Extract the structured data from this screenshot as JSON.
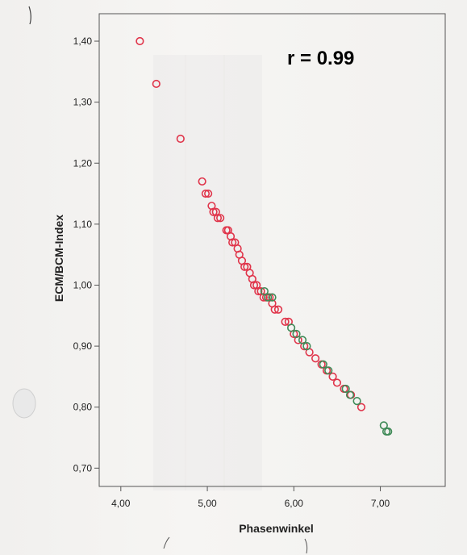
{
  "chart_data": {
    "type": "scatter",
    "title": "",
    "xlabel": "Phasenwinkel",
    "ylabel": "ECM/BCM-Index",
    "xlim": [
      3.75,
      7.75
    ],
    "ylim": [
      0.67,
      1.445
    ],
    "x_ticks": [
      4.0,
      5.0,
      6.0,
      7.0
    ],
    "x_tick_labels": [
      "4,00",
      "5,00",
      "6,00",
      "7,00"
    ],
    "y_ticks": [
      0.7,
      0.8,
      0.9,
      1.0,
      1.1,
      1.2,
      1.3,
      1.4
    ],
    "y_tick_labels": [
      "0,70",
      "0,80",
      "0,90",
      "1,00",
      "1,10",
      "1,20",
      "1,30",
      "1,40"
    ],
    "grid": false,
    "annotation": "r = 0.99",
    "series_colors": {
      "red": "#e0344a",
      "green": "#3f8a57"
    },
    "series": [
      {
        "color": "red",
        "points": [
          [
            4.22,
            1.4
          ],
          [
            4.41,
            1.33
          ],
          [
            4.69,
            1.24
          ],
          [
            4.94,
            1.17
          ],
          [
            4.98,
            1.15
          ],
          [
            5.01,
            1.15
          ],
          [
            5.05,
            1.13
          ],
          [
            5.07,
            1.12
          ],
          [
            5.1,
            1.12
          ],
          [
            5.12,
            1.11
          ],
          [
            5.15,
            1.11
          ],
          [
            5.22,
            1.09
          ],
          [
            5.24,
            1.09
          ],
          [
            5.27,
            1.08
          ],
          [
            5.29,
            1.07
          ],
          [
            5.32,
            1.07
          ],
          [
            5.35,
            1.06
          ],
          [
            5.37,
            1.05
          ],
          [
            5.4,
            1.04
          ],
          [
            5.43,
            1.03
          ],
          [
            5.46,
            1.03
          ],
          [
            5.49,
            1.02
          ],
          [
            5.52,
            1.01
          ],
          [
            5.54,
            1.0
          ],
          [
            5.57,
            1.0
          ],
          [
            5.59,
            0.99
          ],
          [
            5.62,
            0.99
          ],
          [
            5.65,
            0.98
          ],
          [
            5.68,
            0.98
          ],
          [
            5.72,
            0.98
          ],
          [
            5.75,
            0.97
          ],
          [
            5.78,
            0.96
          ],
          [
            5.82,
            0.96
          ],
          [
            5.9,
            0.94
          ],
          [
            5.94,
            0.94
          ],
          [
            6.0,
            0.92
          ],
          [
            6.05,
            0.91
          ],
          [
            6.12,
            0.9
          ],
          [
            6.18,
            0.89
          ],
          [
            6.25,
            0.88
          ],
          [
            6.32,
            0.87
          ],
          [
            6.38,
            0.86
          ],
          [
            6.45,
            0.85
          ],
          [
            6.5,
            0.84
          ],
          [
            6.58,
            0.83
          ],
          [
            6.66,
            0.82
          ],
          [
            6.78,
            0.8
          ]
        ]
      },
      {
        "color": "green",
        "points": [
          [
            5.66,
            0.99
          ],
          [
            5.7,
            0.98
          ],
          [
            5.75,
            0.98
          ],
          [
            5.97,
            0.93
          ],
          [
            6.03,
            0.92
          ],
          [
            6.1,
            0.91
          ],
          [
            6.15,
            0.9
          ],
          [
            6.34,
            0.87
          ],
          [
            6.4,
            0.86
          ],
          [
            6.6,
            0.83
          ],
          [
            6.65,
            0.82
          ],
          [
            6.73,
            0.81
          ],
          [
            7.04,
            0.77
          ],
          [
            7.07,
            0.76
          ],
          [
            7.09,
            0.76
          ]
        ]
      }
    ]
  }
}
